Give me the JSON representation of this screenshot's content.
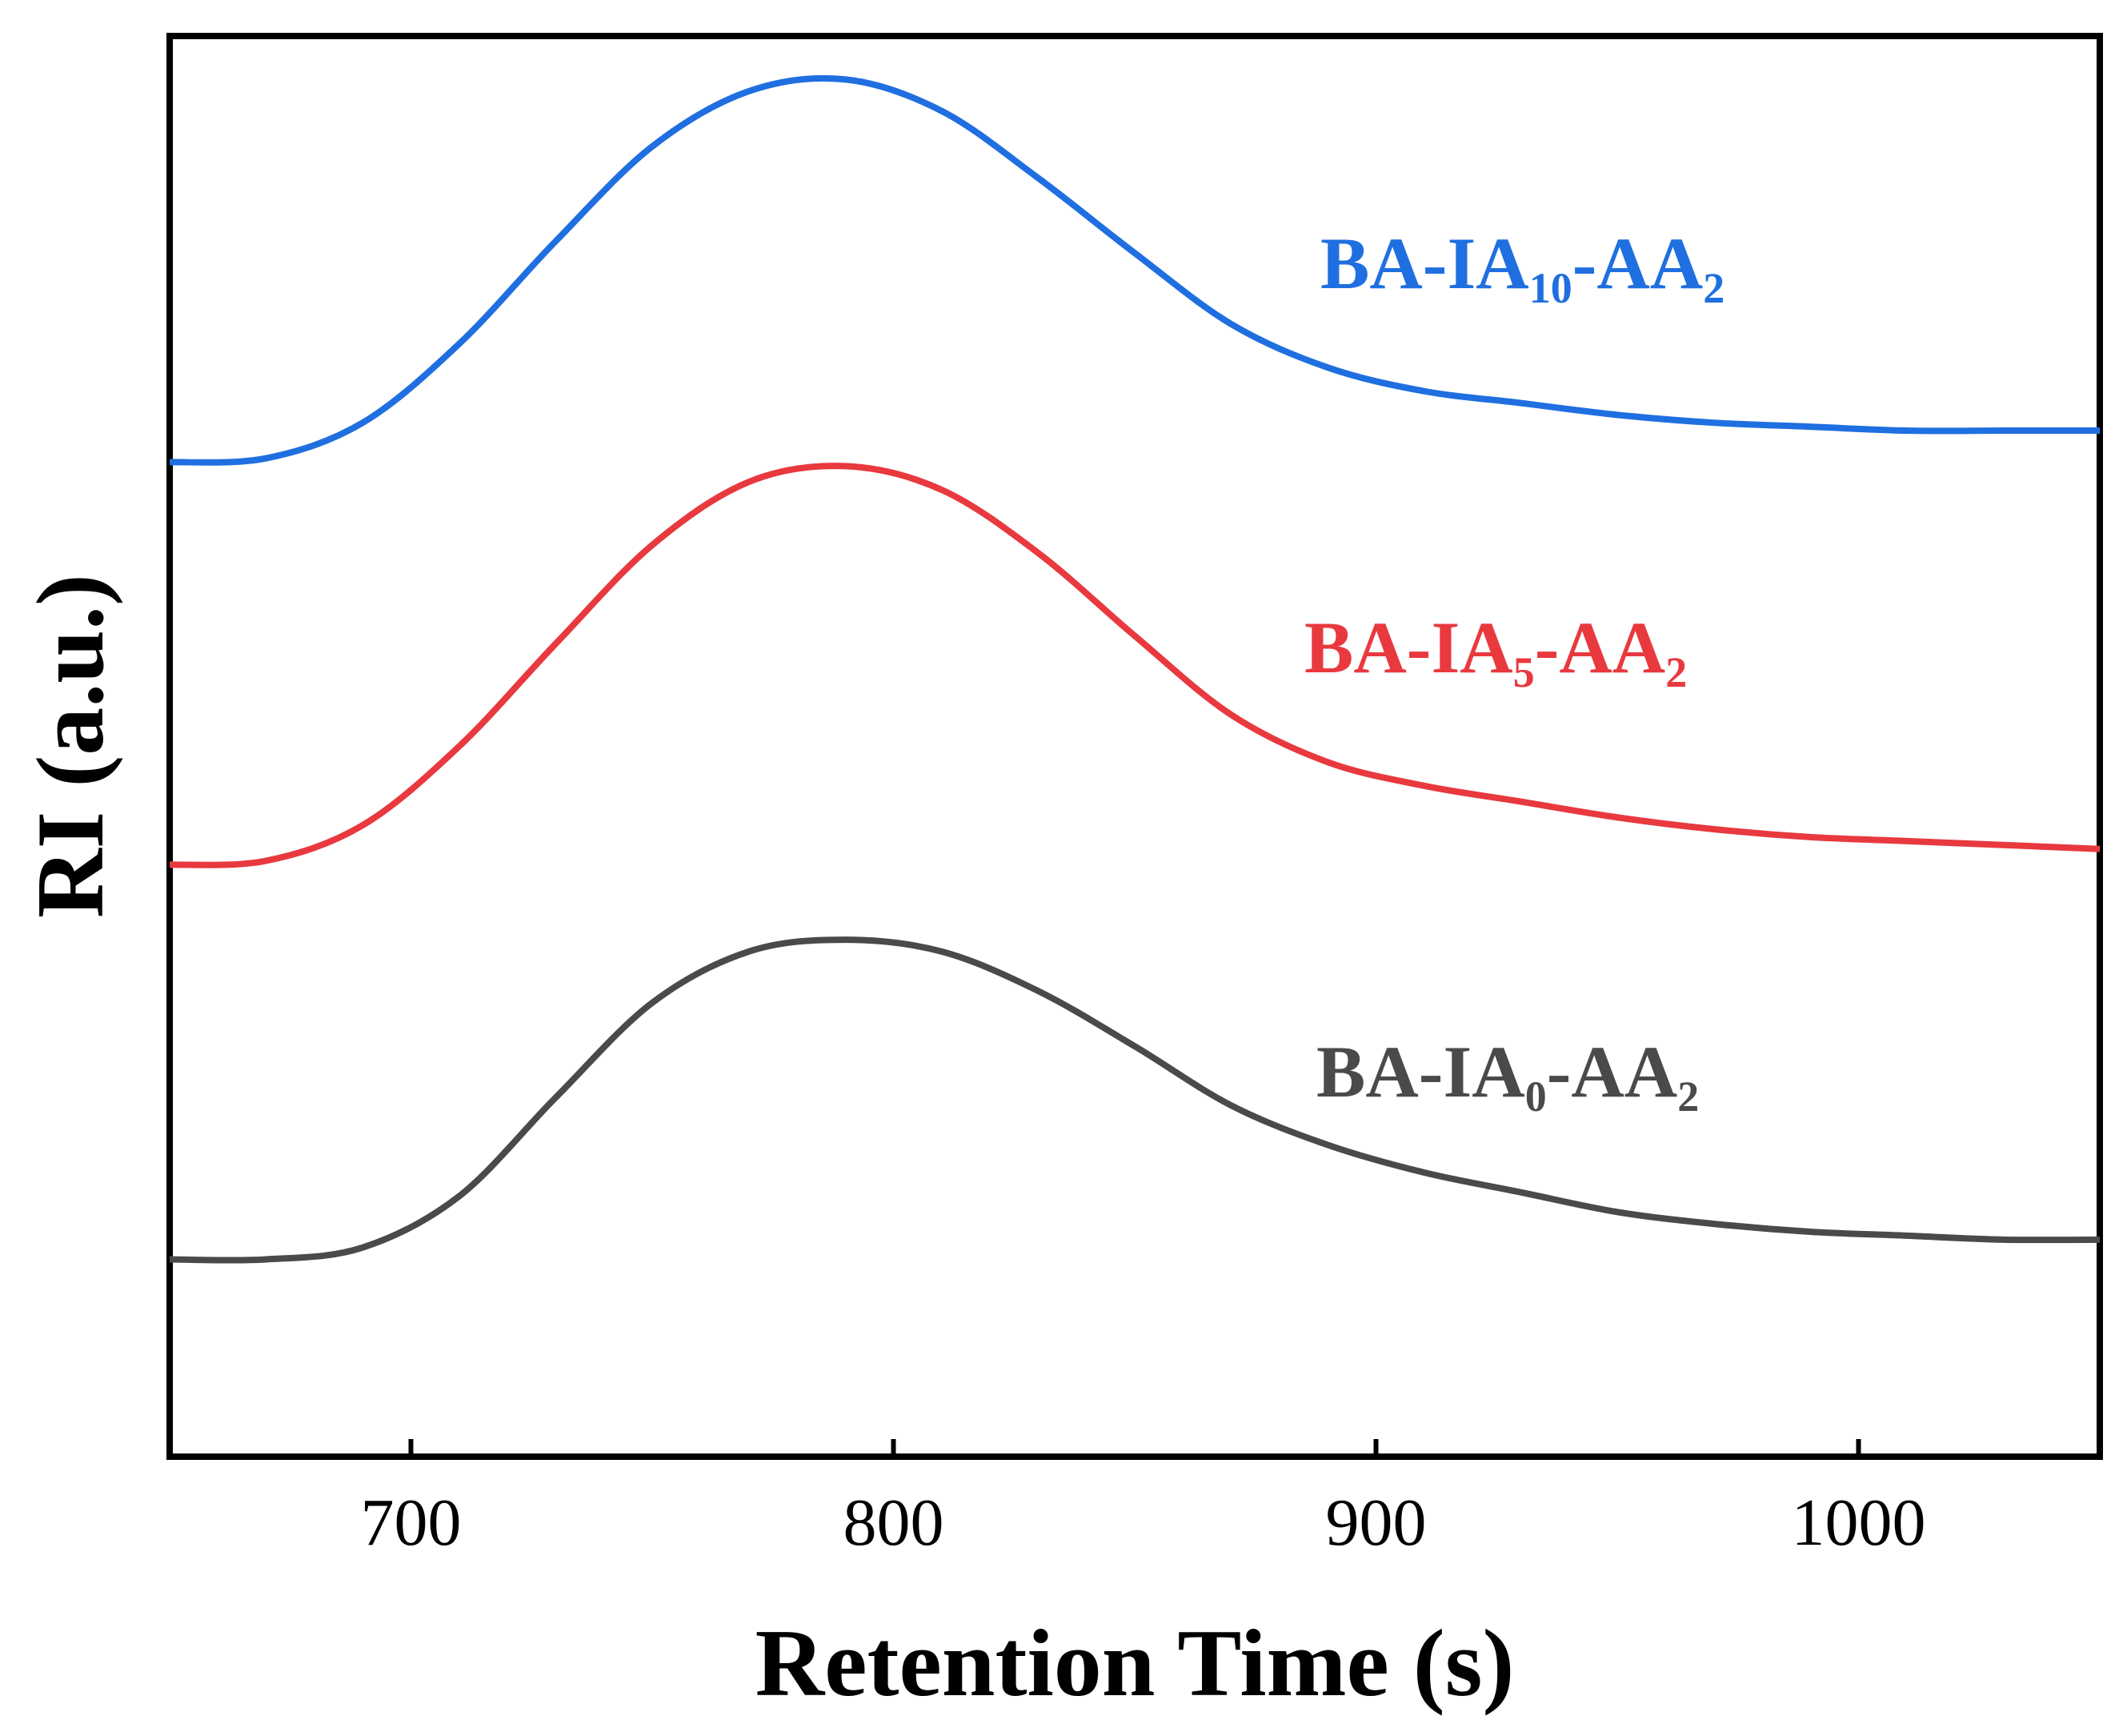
{
  "chart_data": {
    "type": "line",
    "title": "",
    "xlabel": "Retention Time (s)",
    "ylabel": "RI (a.u.)",
    "xlim": [
      650,
      1050
    ],
    "ylim": [
      0,
      3.6
    ],
    "xticks": [
      700,
      800,
      900,
      1000
    ],
    "xtick_labels": [
      "700",
      "800",
      "900",
      "1000"
    ],
    "yticks_shown": false,
    "grid": false,
    "legend": "inline labels",
    "series": [
      {
        "label_base": "BA-IA",
        "label_sub1": "10",
        "label_mid": "-AA",
        "label_sub2": "2",
        "color": "#1f6fe0",
        "x": [
          650,
          670,
          690,
          710,
          730,
          750,
          770,
          790,
          810,
          830,
          850,
          870,
          890,
          910,
          930,
          950,
          970,
          990,
          1010,
          1030,
          1050
        ],
        "y": [
          2.52,
          2.53,
          2.62,
          2.82,
          3.08,
          3.32,
          3.46,
          3.49,
          3.41,
          3.24,
          3.05,
          2.87,
          2.76,
          2.7,
          2.67,
          2.64,
          2.62,
          2.61,
          2.6,
          2.6,
          2.6
        ]
      },
      {
        "label_base": "BA-IA",
        "label_sub1": "5",
        "label_mid": "-AA",
        "label_sub2": "2",
        "color": "#e8393f",
        "x": [
          650,
          670,
          690,
          710,
          730,
          750,
          770,
          790,
          810,
          830,
          850,
          870,
          890,
          910,
          930,
          950,
          970,
          990,
          1010,
          1030,
          1050
        ],
        "y": [
          1.5,
          1.51,
          1.6,
          1.8,
          2.06,
          2.31,
          2.47,
          2.51,
          2.45,
          2.29,
          2.08,
          1.88,
          1.76,
          1.7,
          1.66,
          1.62,
          1.59,
          1.57,
          1.56,
          1.55,
          1.54
        ]
      },
      {
        "label_base": "BA-IA",
        "label_sub1": "0",
        "label_mid": "-AA",
        "label_sub2": "2",
        "color": "#4a4a4a",
        "x": [
          650,
          670,
          690,
          710,
          730,
          750,
          770,
          790,
          810,
          830,
          850,
          870,
          890,
          910,
          930,
          950,
          970,
          990,
          1010,
          1030,
          1050
        ],
        "y": [
          0.5,
          0.5,
          0.53,
          0.66,
          0.91,
          1.15,
          1.28,
          1.31,
          1.28,
          1.18,
          1.04,
          0.89,
          0.79,
          0.72,
          0.67,
          0.62,
          0.59,
          0.57,
          0.56,
          0.55,
          0.55
        ]
      }
    ]
  }
}
